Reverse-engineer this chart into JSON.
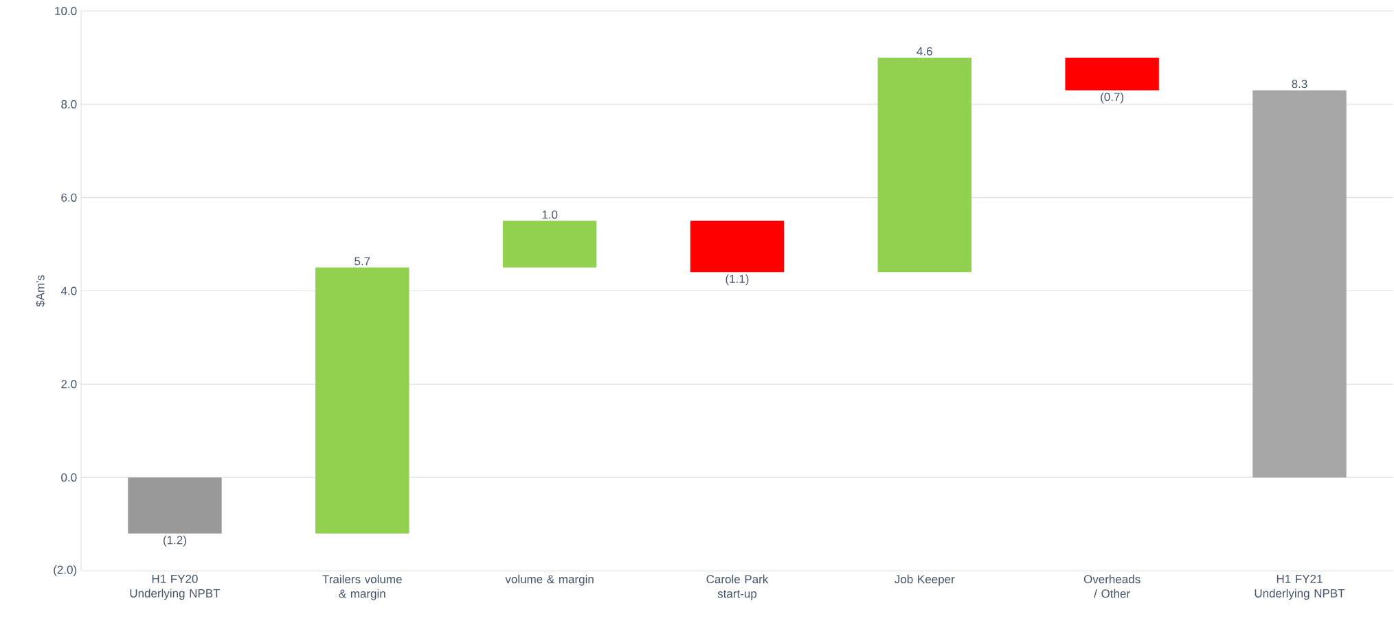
{
  "chart_data": {
    "type": "bar",
    "ylabel": "$Am's",
    "categories": [
      "H1 FY20 Underlying NPBT",
      "Trailers volume & margin",
      "volume & margin",
      "Carole Park start-up",
      "Job Keeper",
      "Overheads / Other",
      "H1 FY21 Underlying NPBT"
    ],
    "values": [
      -1.2,
      5.7,
      1.0,
      -1.1,
      4.6,
      -0.7,
      8.3
    ],
    "base": [
      0,
      -1.2,
      4.5,
      5.5,
      4.4,
      9.0,
      0
    ],
    "colors": [
      "#999999",
      "#92d050",
      "#92d050",
      "#ff0000",
      "#92d050",
      "#ff0000",
      "#a6a6a6"
    ],
    "value_labels": [
      "(1.2)",
      "5.7",
      "1.0",
      "(1.1)",
      "4.6",
      "(0.7)",
      "8.3"
    ],
    "ylim": [
      -2,
      10
    ],
    "yticks": [
      {
        "value": -2,
        "label": "(2.0)"
      },
      {
        "value": 0,
        "label": "0.0"
      },
      {
        "value": 2,
        "label": "2.0"
      },
      {
        "value": 4,
        "label": "4.0"
      },
      {
        "value": 6,
        "label": "6.0"
      },
      {
        "value": 8,
        "label": "8.0"
      },
      {
        "value": 10,
        "label": "10.0"
      }
    ],
    "grid": "y"
  }
}
